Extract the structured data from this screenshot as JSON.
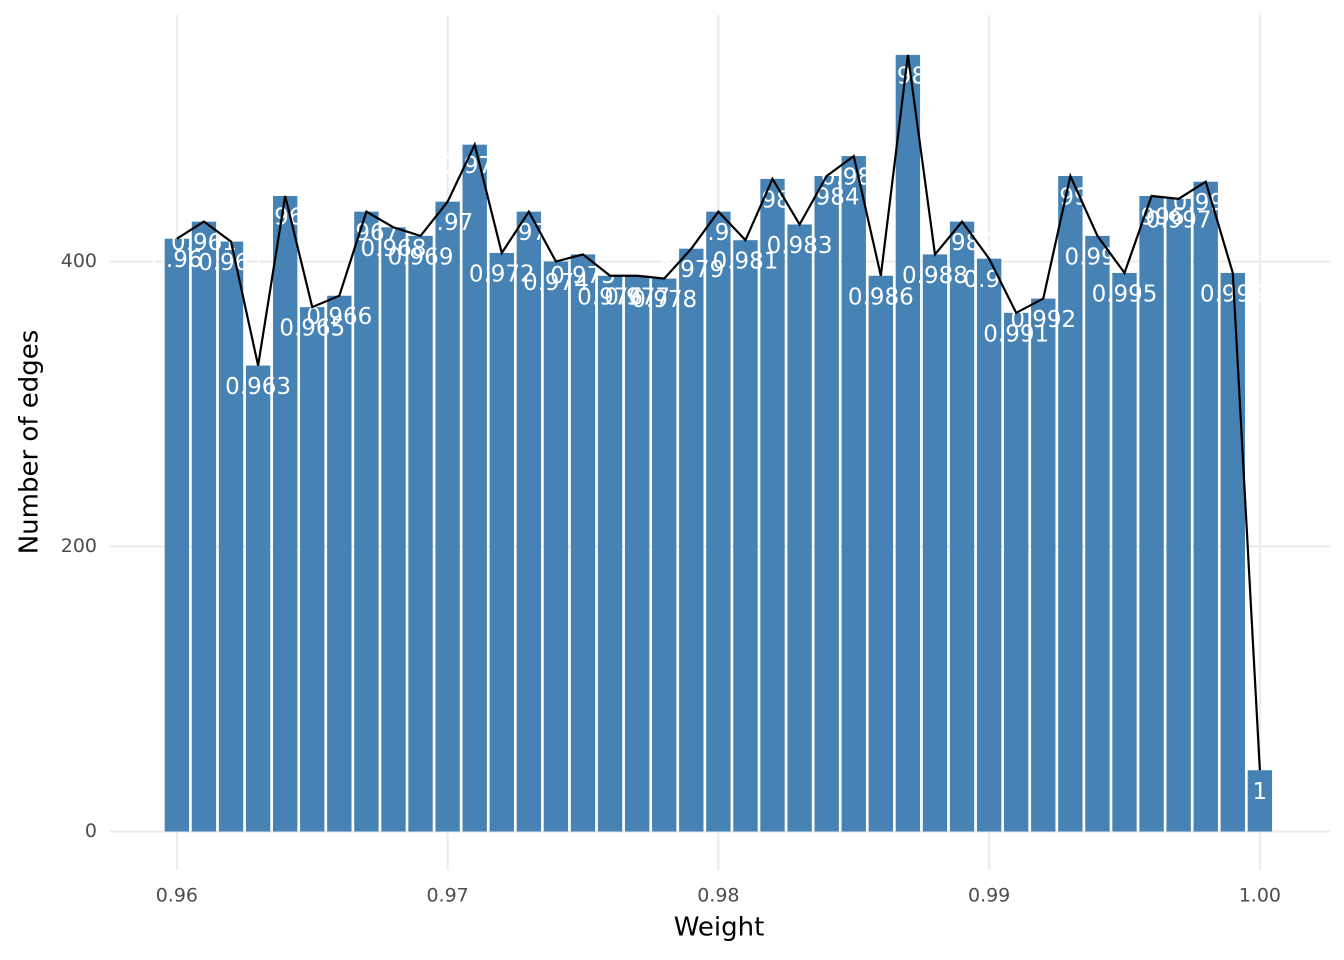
{
  "chart_data": {
    "type": "bar",
    "x_label": "Weight",
    "y_label": "Number of edges",
    "x": [
      0.96,
      0.961,
      0.962,
      0.963,
      0.964,
      0.965,
      0.966,
      0.967,
      0.968,
      0.969,
      0.97,
      0.971,
      0.972,
      0.973,
      0.974,
      0.975,
      0.976,
      0.977,
      0.978,
      0.979,
      0.98,
      0.981,
      0.982,
      0.983,
      0.984,
      0.985,
      0.986,
      0.987,
      0.988,
      0.989,
      0.99,
      0.991,
      0.992,
      0.993,
      0.994,
      0.995,
      0.996,
      0.997,
      0.998,
      0.999,
      1
    ],
    "values": [
      416,
      428,
      414,
      327,
      446,
      368,
      376,
      435,
      424,
      418,
      442,
      482,
      406,
      435,
      400,
      405,
      390,
      390,
      388,
      409,
      435,
      415,
      458,
      426,
      460,
      474,
      390,
      545,
      405,
      428,
      402,
      364,
      374,
      460,
      418,
      392,
      446,
      444,
      456,
      392,
      43
    ],
    "color": "#4682b4",
    "line_color": "#000000",
    "xlim": [
      0.95753,
      1.00259
    ],
    "ylim": [
      -27,
      573
    ],
    "xticks": [
      0.96,
      0.97,
      0.98,
      0.99,
      {
        "value": 1,
        "label": "1.00"
      }
    ],
    "yticks": [
      0,
      200,
      400
    ],
    "grid": true
  }
}
